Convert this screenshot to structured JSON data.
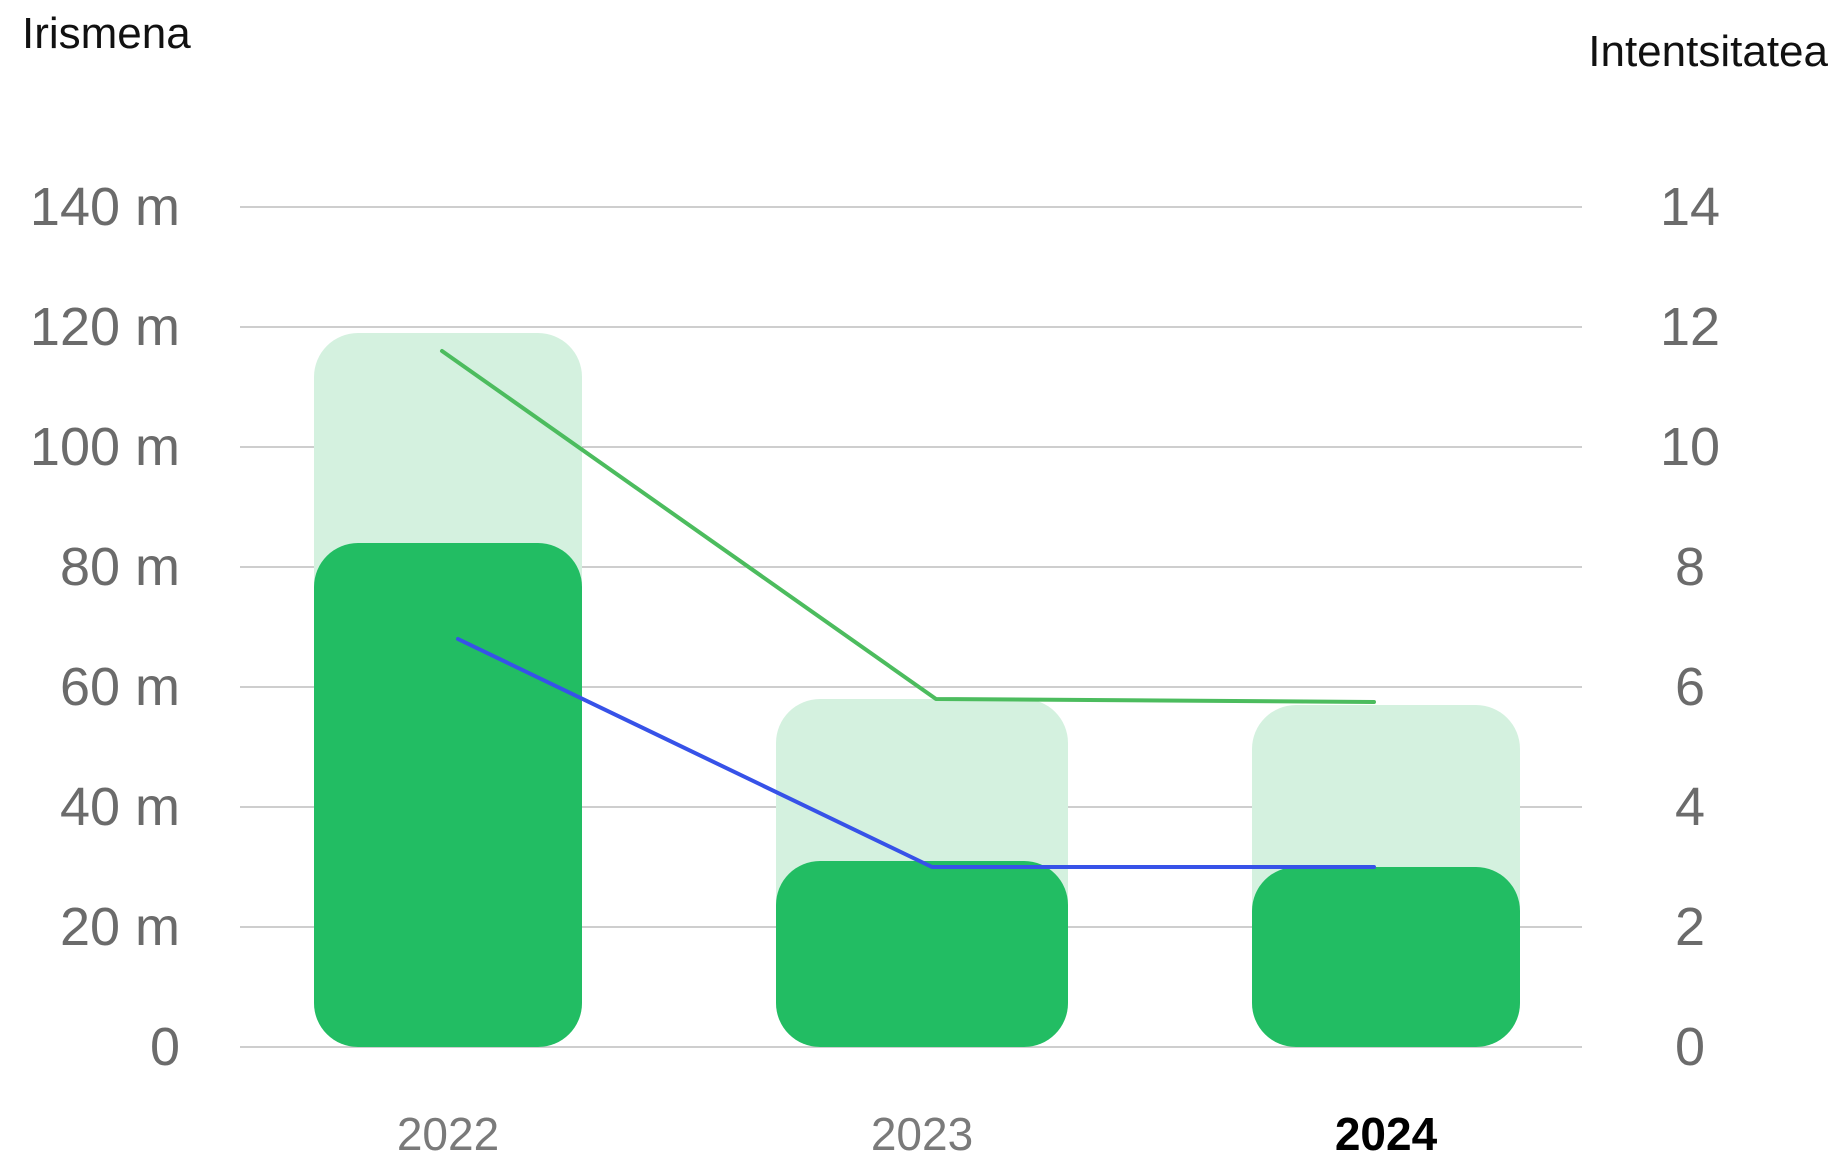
{
  "chart_data": {
    "type": "bar",
    "categories": [
      "2022",
      "2023",
      "2024"
    ],
    "highlight_category": "2024",
    "y_left": {
      "title": "Irismena",
      "ticks": [
        "0",
        "20 m",
        "40 m",
        "60 m",
        "80 m",
        "100 m",
        "120 m",
        "140 m"
      ],
      "tick_values": [
        0,
        20,
        40,
        60,
        80,
        100,
        120,
        140
      ],
      "range": [
        0,
        140
      ]
    },
    "y_right": {
      "title": "Intentsitatea",
      "ticks": [
        "0",
        "2",
        "4",
        "6",
        "8",
        "10",
        "12",
        "14"
      ],
      "tick_values": [
        0,
        2,
        4,
        6,
        8,
        10,
        12,
        14
      ],
      "range": [
        0,
        14
      ]
    },
    "bar_series": [
      {
        "axis": "left",
        "color": "#d4f1df",
        "values": [
          119,
          58,
          57
        ]
      },
      {
        "axis": "left",
        "color": "#22bd63",
        "values": [
          84,
          31,
          30
        ]
      }
    ],
    "line_series": [
      {
        "axis": "right",
        "color": "#4cbc5e",
        "values": [
          11.6,
          5.8,
          5.75
        ]
      },
      {
        "axis": "right",
        "color": "#3752e8",
        "values": [
          6.8,
          3.0,
          3.0
        ]
      }
    ],
    "grid": true,
    "legend": "none"
  }
}
